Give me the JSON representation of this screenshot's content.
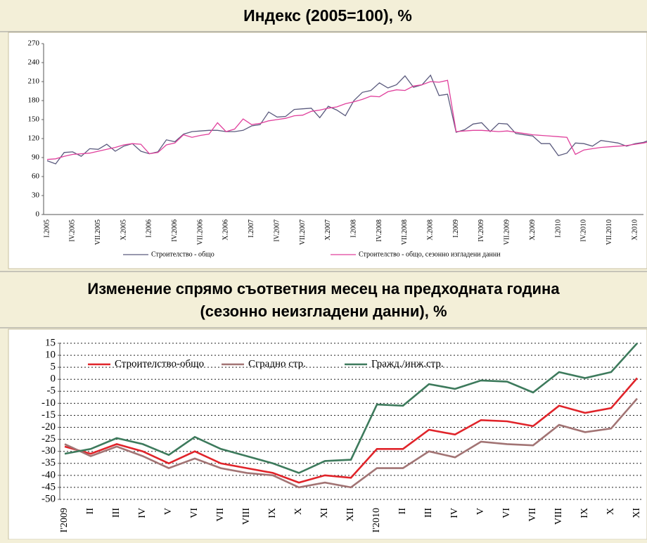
{
  "chart_data": [
    {
      "type": "line",
      "title": "Индекс (2005=100), %",
      "categories": [
        "I.2005",
        null,
        null,
        "IV.2005",
        null,
        null,
        "VII.2005",
        null,
        null,
        "X.2005",
        null,
        null,
        "I.2006",
        null,
        null,
        "IV.2006",
        null,
        null,
        "VII.2006",
        null,
        null,
        "X.2006",
        null,
        null,
        "I.2007",
        null,
        null,
        "IV.2007",
        null,
        null,
        "VII.2007",
        null,
        null,
        "X.2007",
        null,
        null,
        "I.2008",
        null,
        null,
        "IV.2008",
        null,
        null,
        "VII.2008",
        null,
        null,
        "X.2008",
        null,
        null,
        "I.2009",
        null,
        null,
        "IV.2009",
        null,
        null,
        "VII.2009",
        null,
        null,
        "X.2009",
        null,
        null,
        "I.2010",
        null,
        null,
        "IV.2010",
        null,
        null,
        "VII.2010",
        null,
        null,
        "X.2010",
        null,
        null
      ],
      "series": [
        {
          "name": "Строителство - общо",
          "color": "#5b5b7e",
          "values": [
            85,
            80,
            98,
            99,
            92,
            104,
            103,
            111,
            100,
            108,
            112,
            100,
            96,
            99,
            118,
            115,
            127,
            131,
            132,
            133,
            133,
            131,
            131,
            133,
            140,
            142,
            162,
            154,
            155,
            166,
            167,
            168,
            153,
            171,
            165,
            156,
            180,
            193,
            196,
            208,
            200,
            205,
            219,
            201,
            205,
            220,
            188,
            190,
            130,
            134,
            143,
            145,
            131,
            144,
            143,
            128,
            126,
            124,
            112,
            112,
            93,
            97,
            113,
            112,
            108,
            117,
            115,
            113,
            108,
            112,
            114,
            119
          ]
        },
        {
          "name": "Строителство - общо, сезонно изгладени данни",
          "color": "#e0409c",
          "values": [
            87,
            88,
            92,
            95,
            96,
            97,
            100,
            103,
            106,
            110,
            112,
            111,
            96,
            98,
            110,
            113,
            126,
            122,
            125,
            127,
            145,
            131,
            135,
            151,
            142,
            144,
            148,
            150,
            152,
            156,
            157,
            163,
            165,
            168,
            170,
            175,
            178,
            182,
            187,
            186,
            194,
            197,
            196,
            203,
            205,
            210,
            209,
            212,
            131,
            132,
            133,
            133,
            132,
            131,
            132,
            130,
            128,
            126,
            125,
            124,
            123,
            122,
            95,
            102,
            104,
            106,
            107,
            108,
            109,
            111,
            113,
            116
          ]
        }
      ],
      "ylim": [
        0,
        270
      ],
      "yticks": [
        0,
        30,
        60,
        90,
        120,
        150,
        180,
        210,
        240,
        270
      ],
      "grid": false,
      "legend": "bottom"
    },
    {
      "type": "line",
      "title": [
        "Изменение спрямо съответния месец на предходната година",
        "(сезонно неизгладени данни), %"
      ],
      "categories": [
        "I'2009",
        "II",
        "III",
        "IV",
        "V",
        "VI",
        "VII",
        "VIII",
        "IX",
        "X",
        "XI",
        "XII",
        "I'2010",
        "II",
        "III",
        "IV",
        "V",
        "VI",
        "VII",
        "VIII",
        "IX",
        "X",
        "XI"
      ],
      "series": [
        {
          "name": "Строителство-общо",
          "color": "#e0242a",
          "values": [
            -28,
            -31,
            -27,
            -30,
            -35,
            -30,
            -35,
            -37,
            -39,
            -43,
            -40,
            -41,
            -29,
            -29,
            -21,
            -23,
            -17,
            -17.5,
            -19.5,
            -11,
            -14,
            -12,
            0.5
          ]
        },
        {
          "name": "Сградно стр.",
          "color": "#a27474",
          "values": [
            -27,
            -32,
            -28,
            -32,
            -37,
            -33,
            -37,
            -39,
            -40,
            -45,
            -43,
            -45,
            -37,
            -37,
            -30,
            -32.5,
            -26,
            -27,
            -27.5,
            -19,
            -22,
            -20.5,
            -8
          ]
        },
        {
          "name": "Гражд./инж.стр.",
          "color": "#3d7a5c",
          "values": [
            -31,
            -29,
            -24.5,
            -27,
            -31.5,
            -24,
            -29,
            -32,
            -35,
            -39,
            -34,
            -33.5,
            -10.5,
            -11,
            -2,
            -4,
            -0.5,
            -1,
            -5.5,
            3,
            0.5,
            3,
            15
          ]
        }
      ],
      "ylim": [
        -50,
        15
      ],
      "yticks": [
        -50,
        -45,
        -40,
        -35,
        -30,
        -25,
        -20,
        -15,
        -10,
        -5,
        0,
        5,
        10,
        15
      ],
      "grid": true,
      "legend": "upper left"
    }
  ]
}
